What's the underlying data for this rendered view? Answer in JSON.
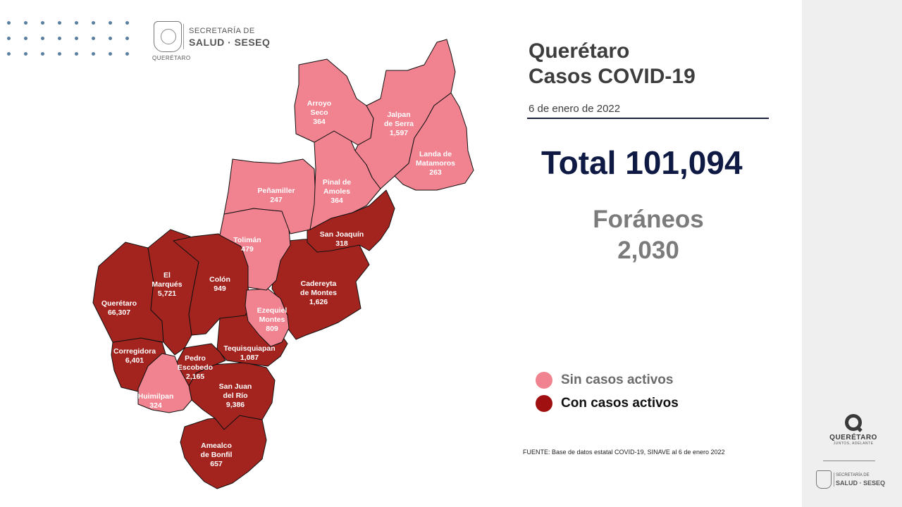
{
  "header_logo": {
    "line1": "SECRETARÍA DE",
    "line2": "SALUD · SESEQ",
    "caption": "QUERÉTARO"
  },
  "title": {
    "line1": "Querétaro",
    "line2": "Casos COVID-19"
  },
  "date": "6 de enero de 2022",
  "total": "Total 101,094",
  "foraneos": {
    "label": "Foráneos",
    "value": "2,030"
  },
  "legend": [
    {
      "label": "Sin casos activos",
      "color": "#f0838f"
    },
    {
      "label": "Con casos activos",
      "color": "#a01010"
    }
  ],
  "colors": {
    "inactive": "#f0838f",
    "active": "#a3241f",
    "title": "#3d3d3d",
    "total": "#0f1a44",
    "foraneos": "#7b7b7b"
  },
  "source": "FUENTE: Base de datos estatal  COVID-19,  SINAVE  al 6 de enero 2022",
  "brand": {
    "name": "QUERÉTARO",
    "slogan": "JUNTOS, ADELANTE"
  },
  "footer_logo": {
    "line1": "SECRETARÍA DE",
    "line2": "SALUD · SESEQ"
  },
  "municipalities": [
    {
      "name": "Arroyo Seco",
      "name_lines": [
        "Arroyo",
        "Seco"
      ],
      "cases": "364",
      "status": "inactive"
    },
    {
      "name": "Jalpan de Serra",
      "name_lines": [
        "Jalpan",
        "de Serra"
      ],
      "cases": "1,597",
      "status": "inactive"
    },
    {
      "name": "Landa de Matamoros",
      "name_lines": [
        "Landa de",
        "Matamoros"
      ],
      "cases": "263",
      "status": "inactive"
    },
    {
      "name": "Pinal de Amoles",
      "name_lines": [
        "Pinal de",
        "Amoles"
      ],
      "cases": "364",
      "status": "inactive"
    },
    {
      "name": "Peñamiller",
      "name_lines": [
        "Peñamiller"
      ],
      "cases": "247",
      "status": "inactive"
    },
    {
      "name": "San Joaquín",
      "name_lines": [
        "San Joaquín"
      ],
      "cases": "318",
      "status": "active"
    },
    {
      "name": "Tolimán",
      "name_lines": [
        "Tolimán"
      ],
      "cases": "479",
      "status": "inactive"
    },
    {
      "name": "Cadereyta de Montes",
      "name_lines": [
        "Cadereyta",
        "de Montes"
      ],
      "cases": "1,626",
      "status": "active"
    },
    {
      "name": "Colón",
      "name_lines": [
        "Colón"
      ],
      "cases": "949",
      "status": "active"
    },
    {
      "name": "El Marqués",
      "name_lines": [
        "El",
        "Marqués"
      ],
      "cases": "5,721",
      "status": "active"
    },
    {
      "name": "Querétaro",
      "name_lines": [
        "Querétaro"
      ],
      "cases": "66,307",
      "status": "active"
    },
    {
      "name": "Ezequiel Montes",
      "name_lines": [
        "Ezequiel",
        "Montes"
      ],
      "cases": "809",
      "status": "inactive"
    },
    {
      "name": "Tequisquiapan",
      "name_lines": [
        "Tequisquiapan"
      ],
      "cases": "1,087",
      "status": "active"
    },
    {
      "name": "Corregidora",
      "name_lines": [
        "Corregidora"
      ],
      "cases": "6,401",
      "status": "active"
    },
    {
      "name": "Pedro Escobedo",
      "name_lines": [
        "Pedro",
        "Escobedo"
      ],
      "cases": "2,165",
      "status": "active"
    },
    {
      "name": "San Juan del Río",
      "name_lines": [
        "San Juan",
        "del Río"
      ],
      "cases": "9,386",
      "status": "active"
    },
    {
      "name": "Huimilpan",
      "name_lines": [
        "Huimilpan"
      ],
      "cases": "324",
      "status": "inactive"
    },
    {
      "name": "Amealco de Bonfil",
      "name_lines": [
        "Amealco",
        "de Bonfil"
      ],
      "cases": "657",
      "status": "active"
    }
  ]
}
